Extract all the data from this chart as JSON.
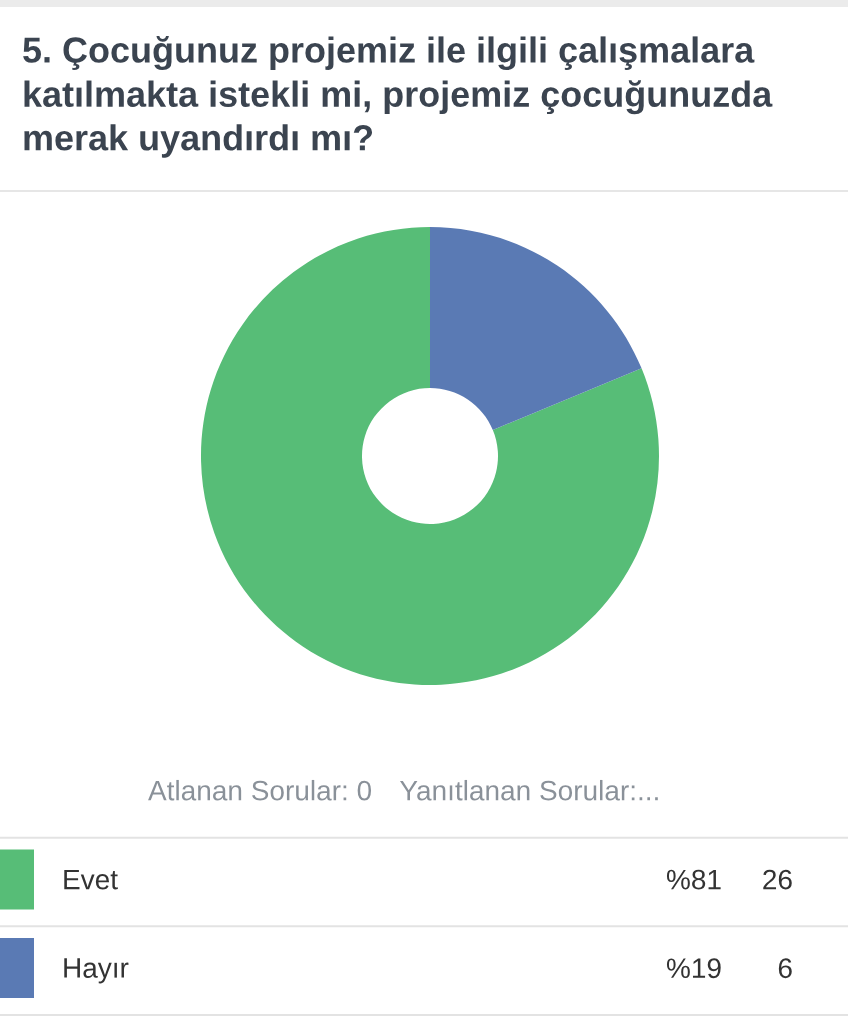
{
  "chart_data": {
    "type": "donut",
    "title": "5. Çocuğunuz projemiz ile ilgili çalışmalara katılmakta istekli mi, projemiz çocuğunuzda merak uyandırdı mı?",
    "categories": [
      "Evet",
      "Hayır"
    ],
    "values": [
      26,
      6
    ],
    "colors": [
      "#57bd77",
      "#5a7ab4"
    ],
    "data_labels": true,
    "legend": "bottom",
    "annotations": [
      "Atlanan Sorular: 0",
      "Yanıtlanan Sorular:...",
      {
        "text": "%81",
        "x": "Evet"
      },
      {
        "text": "%19",
        "x": "Hayır"
      }
    ]
  }
}
